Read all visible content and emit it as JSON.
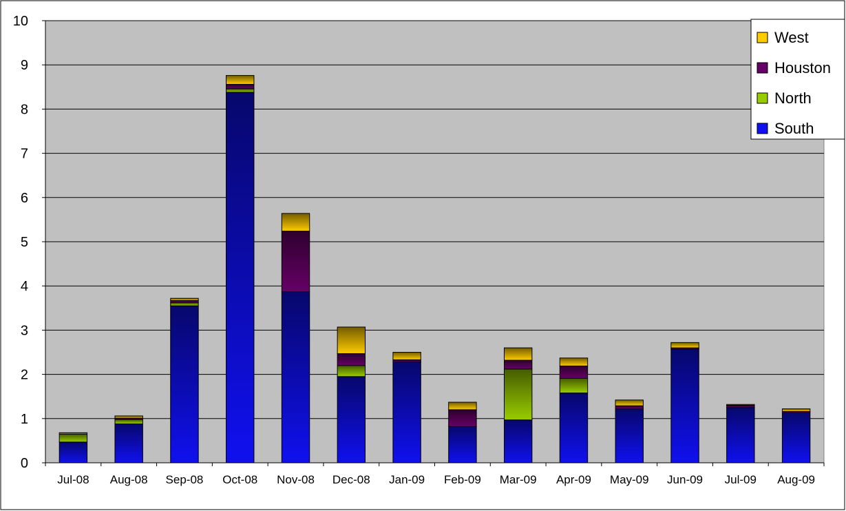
{
  "chart_data": {
    "type": "bar",
    "stacked": true,
    "title": "",
    "xlabel": "",
    "ylabel": "",
    "ylim": [
      0,
      10
    ],
    "yticks": [
      0,
      1,
      2,
      3,
      4,
      5,
      6,
      7,
      8,
      9,
      10
    ],
    "grid": true,
    "legend_position": "top-right",
    "categories": [
      "Jul-08",
      "Aug-08",
      "Sep-08",
      "Oct-08",
      "Nov-08",
      "Dec-08",
      "Jan-09",
      "Feb-09",
      "Mar-09",
      "Apr-09",
      "May-09",
      "Jun-09",
      "Jul-09",
      "Aug-09"
    ],
    "series": [
      {
        "name": "South",
        "color": "#1010f0",
        "values": [
          0.47,
          0.88,
          3.55,
          8.38,
          3.87,
          1.95,
          2.28,
          0.82,
          0.97,
          1.58,
          1.22,
          2.57,
          1.25,
          1.13
        ]
      },
      {
        "name": "North",
        "color": "#99cc00",
        "values": [
          0.18,
          0.1,
          0.07,
          0.08,
          0.0,
          0.25,
          0.0,
          0.0,
          1.15,
          0.33,
          0.0,
          0.0,
          0.0,
          0.0
        ]
      },
      {
        "name": "Houston",
        "color": "#660066",
        "values": [
          0.0,
          0.03,
          0.05,
          0.1,
          1.37,
          0.27,
          0.05,
          0.38,
          0.2,
          0.28,
          0.07,
          0.03,
          0.05,
          0.03
        ]
      },
      {
        "name": "West",
        "color": "#ffcc00",
        "values": [
          0.03,
          0.05,
          0.05,
          0.2,
          0.4,
          0.6,
          0.17,
          0.17,
          0.28,
          0.18,
          0.13,
          0.12,
          0.02,
          0.06
        ]
      }
    ],
    "legend_order": [
      "West",
      "Houston",
      "North",
      "South"
    ],
    "colors": {
      "plot_background": "#c0c0c0",
      "gridline": "#000000",
      "frame": "#000000"
    }
  }
}
